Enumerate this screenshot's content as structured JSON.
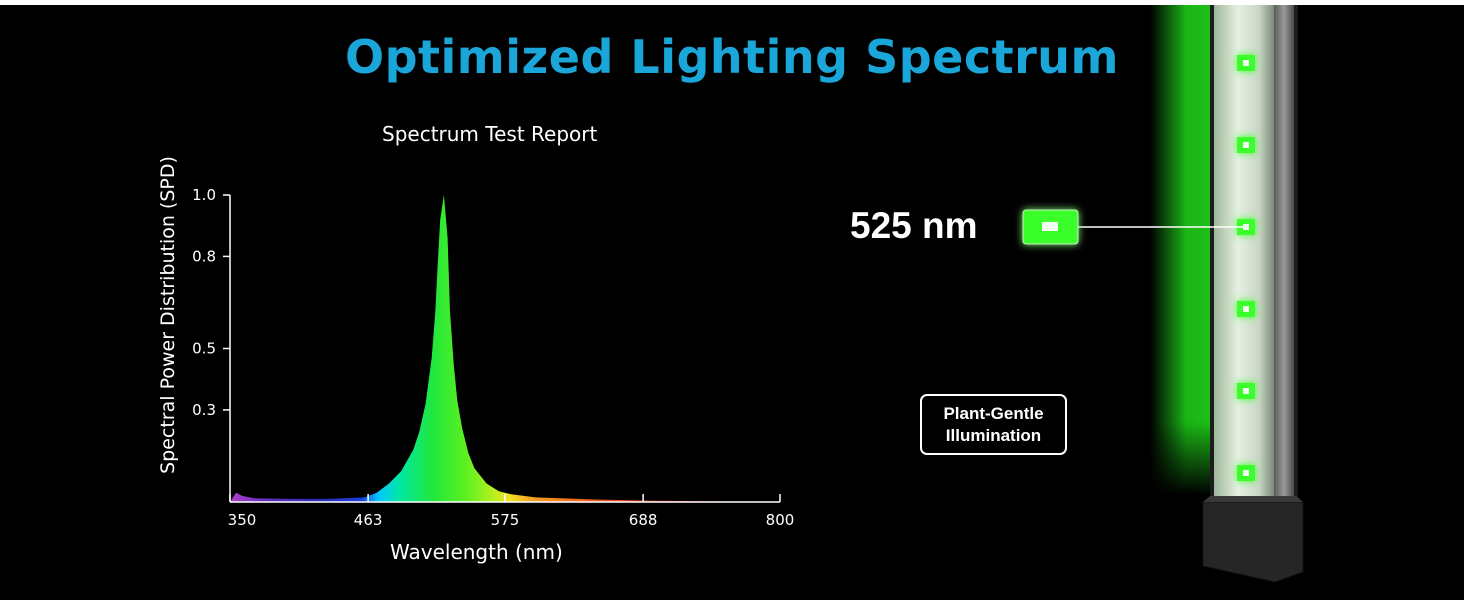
{
  "page": {
    "title": "Optimized Lighting Spectrum",
    "title_color": "#1aa6d9",
    "background": "#000000"
  },
  "callout": {
    "label": "525 nm",
    "led_color": "#3bff2a"
  },
  "badge": {
    "line1": "Plant-Gentle",
    "line2": "Illumination"
  },
  "product": {
    "type": "LED strip light bar with mounting base",
    "led_count": 6,
    "glow_color": "#1fd41a"
  },
  "chart_data": {
    "type": "area",
    "title": "Spectrum Test Report",
    "xlabel": "Wavelength (nm)",
    "ylabel": "Spectral Power Distribution (SPD)",
    "xlim": [
      350,
      800
    ],
    "ylim": [
      0,
      1.0
    ],
    "x_ticks": [
      350,
      463,
      575,
      688,
      800
    ],
    "x_tick_labels": [
      "350",
      "463",
      "575",
      "688",
      "800"
    ],
    "y_ticks": [
      0.3,
      0.5,
      0.8,
      1.0
    ],
    "y_tick_labels": [
      "0.3",
      "0.5",
      "0.8",
      "1.0"
    ],
    "fill": "spectral gradient by wavelength",
    "grid": false,
    "legend": "none",
    "series": [
      {
        "x": [
          350,
          355,
          360,
          370,
          400,
          430,
          460,
          470,
          480,
          490,
          500,
          505,
          510,
          515,
          518,
          520,
          522,
          525,
          528,
          530,
          533,
          536,
          540,
          545,
          550,
          560,
          570,
          580,
          600,
          650,
          700,
          750,
          800
        ],
        "values": [
          0.0,
          0.03,
          0.02,
          0.012,
          0.01,
          0.01,
          0.015,
          0.03,
          0.06,
          0.1,
          0.17,
          0.23,
          0.32,
          0.47,
          0.62,
          0.78,
          0.92,
          1.0,
          0.86,
          0.62,
          0.45,
          0.33,
          0.24,
          0.16,
          0.11,
          0.06,
          0.035,
          0.025,
          0.015,
          0.008,
          0.004,
          0.002,
          0.0
        ]
      }
    ]
  }
}
